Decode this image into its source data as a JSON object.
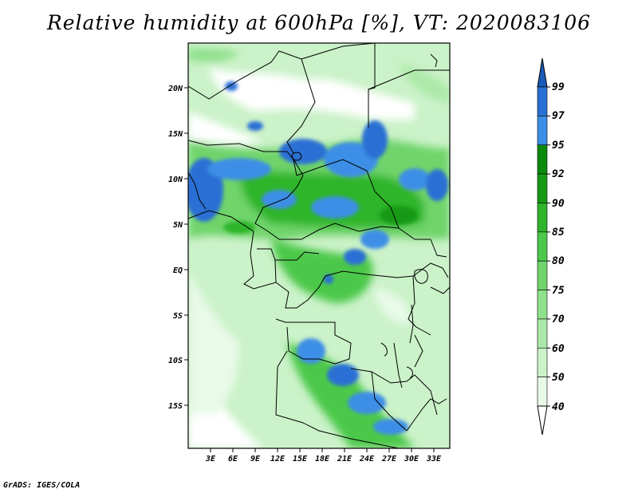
{
  "title": "Relative humidity at 600hPa [%], VT: 2020083106",
  "credit": "GrADS: IGES/COLA",
  "map": {
    "lat_labels": [
      "20N",
      "15N",
      "10N",
      "5N",
      "EQ",
      "5S",
      "10S",
      "15S"
    ],
    "lon_labels": [
      "3E",
      "6E",
      "9E",
      "12E",
      "15E",
      "18E",
      "21E",
      "24E",
      "27E",
      "30E",
      "33E"
    ],
    "field": "relative-humidity",
    "level": "600hPa",
    "valid_time": "2020083106"
  },
  "colorbar": {
    "levels": [
      "40",
      "50",
      "60",
      "70",
      "75",
      "80",
      "85",
      "90",
      "92",
      "95",
      "97",
      "99"
    ],
    "colors": [
      "#ffffff",
      "#e8fae8",
      "#cbf2c9",
      "#ace9a9",
      "#8fe08b",
      "#6fd46b",
      "#4cc84a",
      "#2fb52c",
      "#169a16",
      "#0c8a0c",
      "#3d8ee6",
      "#2a6fd4",
      "#1a5ab8"
    ]
  }
}
